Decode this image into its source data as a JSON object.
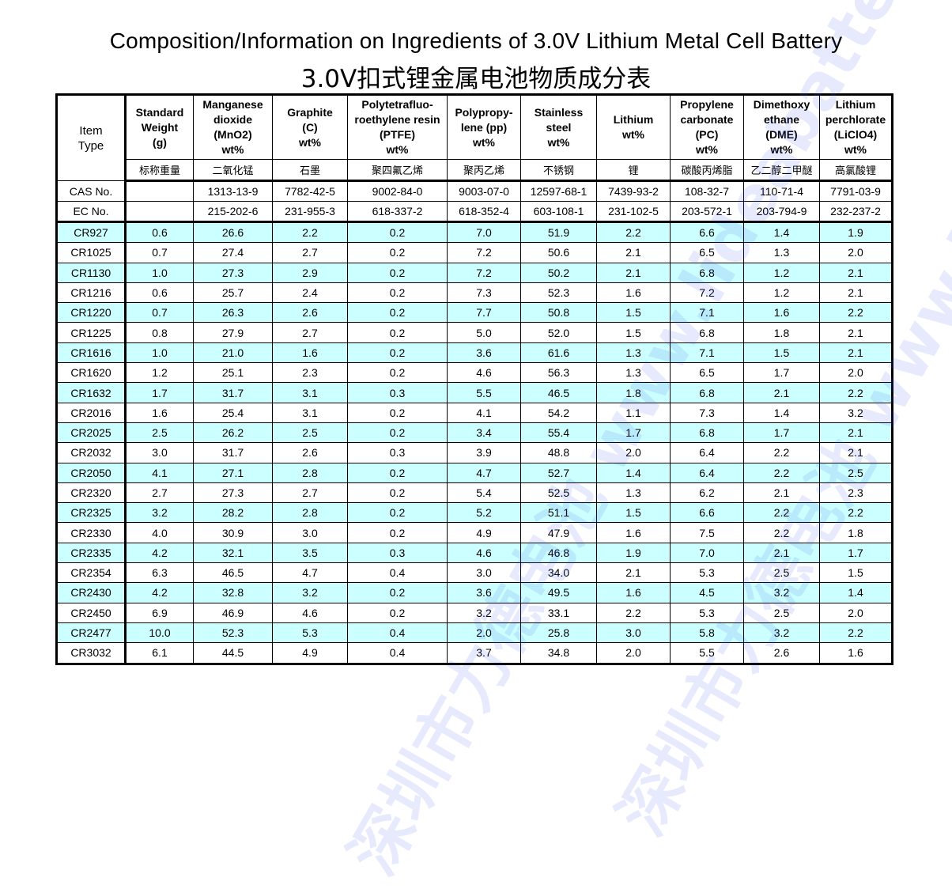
{
  "title_en": "Composition/Information on Ingredients of 3.0V Lithium Metal Cell Battery",
  "title_cn": "3.0V扣式锂金属电池物质成分表",
  "watermark": "深圳市力德电池 www.lideabattery.cn",
  "colors": {
    "alt_row": "#ccffff",
    "border": "#000000"
  },
  "table": {
    "item_header": [
      "Item",
      "Type"
    ],
    "columns": [
      {
        "lines": [
          "Standard",
          "Weight",
          "(g)"
        ],
        "cn": "标称重量",
        "cas": "",
        "ec": ""
      },
      {
        "lines": [
          "Manganese",
          "dioxide",
          "(MnO2)",
          "wt%"
        ],
        "cn": "二氧化锰",
        "cas": "1313-13-9",
        "ec": "215-202-6"
      },
      {
        "lines": [
          "Graphite",
          "(C)",
          "wt%"
        ],
        "cn": "石墨",
        "cas": "7782-42-5",
        "ec": "231-955-3"
      },
      {
        "lines": [
          "Polytetrafluo-",
          "roethylene resin",
          "(PTFE)",
          "wt%"
        ],
        "cn": "聚四氟乙烯",
        "cas": "9002-84-0",
        "ec": "618-337-2"
      },
      {
        "lines": [
          "Polypropy-",
          "lene (pp)",
          "wt%"
        ],
        "cn": "聚丙乙烯",
        "cas": "9003-07-0",
        "ec": "618-352-4"
      },
      {
        "lines": [
          "Stainless",
          "steel",
          "wt%"
        ],
        "cn": "不锈钢",
        "cas": "12597-68-1",
        "ec": "603-108-1"
      },
      {
        "lines": [
          "Lithium",
          "wt%"
        ],
        "cn": "锂",
        "cas": "7439-93-2",
        "ec": "231-102-5"
      },
      {
        "lines": [
          "Propylene",
          "carbonate",
          "(PC)",
          "wt%"
        ],
        "cn": "碳酸丙烯脂",
        "cas": "108-32-7",
        "ec": "203-572-1"
      },
      {
        "lines": [
          "Dimethoxy",
          "ethane",
          "(DME)",
          "wt%"
        ],
        "cn": "乙二醇二甲醚",
        "cas": "110-71-4",
        "ec": "203-794-9"
      },
      {
        "lines": [
          "Lithium",
          "perchlorate",
          "(LiClO4)",
          "wt%"
        ],
        "cn": "高氯酸锂",
        "cas": "7791-03-9",
        "ec": "232-237-2"
      }
    ],
    "cas_label": "CAS No.",
    "ec_label": "EC No.",
    "rows": [
      [
        "CR927",
        "0.6",
        "26.6",
        "2.2",
        "0.2",
        "7.0",
        "51.9",
        "2.2",
        "6.6",
        "1.4",
        "1.9"
      ],
      [
        "CR1025",
        "0.7",
        "27.4",
        "2.7",
        "0.2",
        "7.2",
        "50.6",
        "2.1",
        "6.5",
        "1.3",
        "2.0"
      ],
      [
        "CR1130",
        "1.0",
        "27.3",
        "2.9",
        "0.2",
        "7.2",
        "50.2",
        "2.1",
        "6.8",
        "1.2",
        "2.1"
      ],
      [
        "CR1216",
        "0.6",
        "25.7",
        "2.4",
        "0.2",
        "7.3",
        "52.3",
        "1.6",
        "7.2",
        "1.2",
        "2.1"
      ],
      [
        "CR1220",
        "0.7",
        "26.3",
        "2.6",
        "0.2",
        "7.7",
        "50.8",
        "1.5",
        "7.1",
        "1.6",
        "2.2"
      ],
      [
        "CR1225",
        "0.8",
        "27.9",
        "2.7",
        "0.2",
        "5.0",
        "52.0",
        "1.5",
        "6.8",
        "1.8",
        "2.1"
      ],
      [
        "CR1616",
        "1.0",
        "21.0",
        "1.6",
        "0.2",
        "3.6",
        "61.6",
        "1.3",
        "7.1",
        "1.5",
        "2.1"
      ],
      [
        "CR1620",
        "1.2",
        "25.1",
        "2.3",
        "0.2",
        "4.6",
        "56.3",
        "1.3",
        "6.5",
        "1.7",
        "2.0"
      ],
      [
        "CR1632",
        "1.7",
        "31.7",
        "3.1",
        "0.3",
        "5.5",
        "46.5",
        "1.8",
        "6.8",
        "2.1",
        "2.2"
      ],
      [
        "CR2016",
        "1.6",
        "25.4",
        "3.1",
        "0.2",
        "4.1",
        "54.2",
        "1.1",
        "7.3",
        "1.4",
        "3.2"
      ],
      [
        "CR2025",
        "2.5",
        "26.2",
        "2.5",
        "0.2",
        "3.4",
        "55.4",
        "1.7",
        "6.8",
        "1.7",
        "2.1"
      ],
      [
        "CR2032",
        "3.0",
        "31.7",
        "2.6",
        "0.3",
        "3.9",
        "48.8",
        "2.0",
        "6.4",
        "2.2",
        "2.1"
      ],
      [
        "CR2050",
        "4.1",
        "27.1",
        "2.8",
        "0.2",
        "4.7",
        "52.7",
        "1.4",
        "6.4",
        "2.2",
        "2.5"
      ],
      [
        "CR2320",
        "2.7",
        "27.3",
        "2.7",
        "0.2",
        "5.4",
        "52.5",
        "1.3",
        "6.2",
        "2.1",
        "2.3"
      ],
      [
        "CR2325",
        "3.2",
        "28.2",
        "2.8",
        "0.2",
        "5.2",
        "51.1",
        "1.5",
        "6.6",
        "2.2",
        "2.2"
      ],
      [
        "CR2330",
        "4.0",
        "30.9",
        "3.0",
        "0.2",
        "4.9",
        "47.9",
        "1.6",
        "7.5",
        "2.2",
        "1.8"
      ],
      [
        "CR2335",
        "4.2",
        "32.1",
        "3.5",
        "0.3",
        "4.6",
        "46.8",
        "1.9",
        "7.0",
        "2.1",
        "1.7"
      ],
      [
        "CR2354",
        "6.3",
        "46.5",
        "4.7",
        "0.4",
        "3.0",
        "34.0",
        "2.1",
        "5.3",
        "2.5",
        "1.5"
      ],
      [
        "CR2430",
        "4.2",
        "32.8",
        "3.2",
        "0.2",
        "3.6",
        "49.5",
        "1.6",
        "4.5",
        "3.2",
        "1.4"
      ],
      [
        "CR2450",
        "6.9",
        "46.9",
        "4.6",
        "0.2",
        "3.2",
        "33.1",
        "2.2",
        "5.3",
        "2.5",
        "2.0"
      ],
      [
        "CR2477",
        "10.0",
        "52.3",
        "5.3",
        "0.4",
        "2.0",
        "25.8",
        "3.0",
        "5.8",
        "3.2",
        "2.2"
      ],
      [
        "CR3032",
        "6.1",
        "44.5",
        "4.9",
        "0.4",
        "3.7",
        "34.8",
        "2.0",
        "5.5",
        "2.6",
        "1.6"
      ]
    ]
  }
}
